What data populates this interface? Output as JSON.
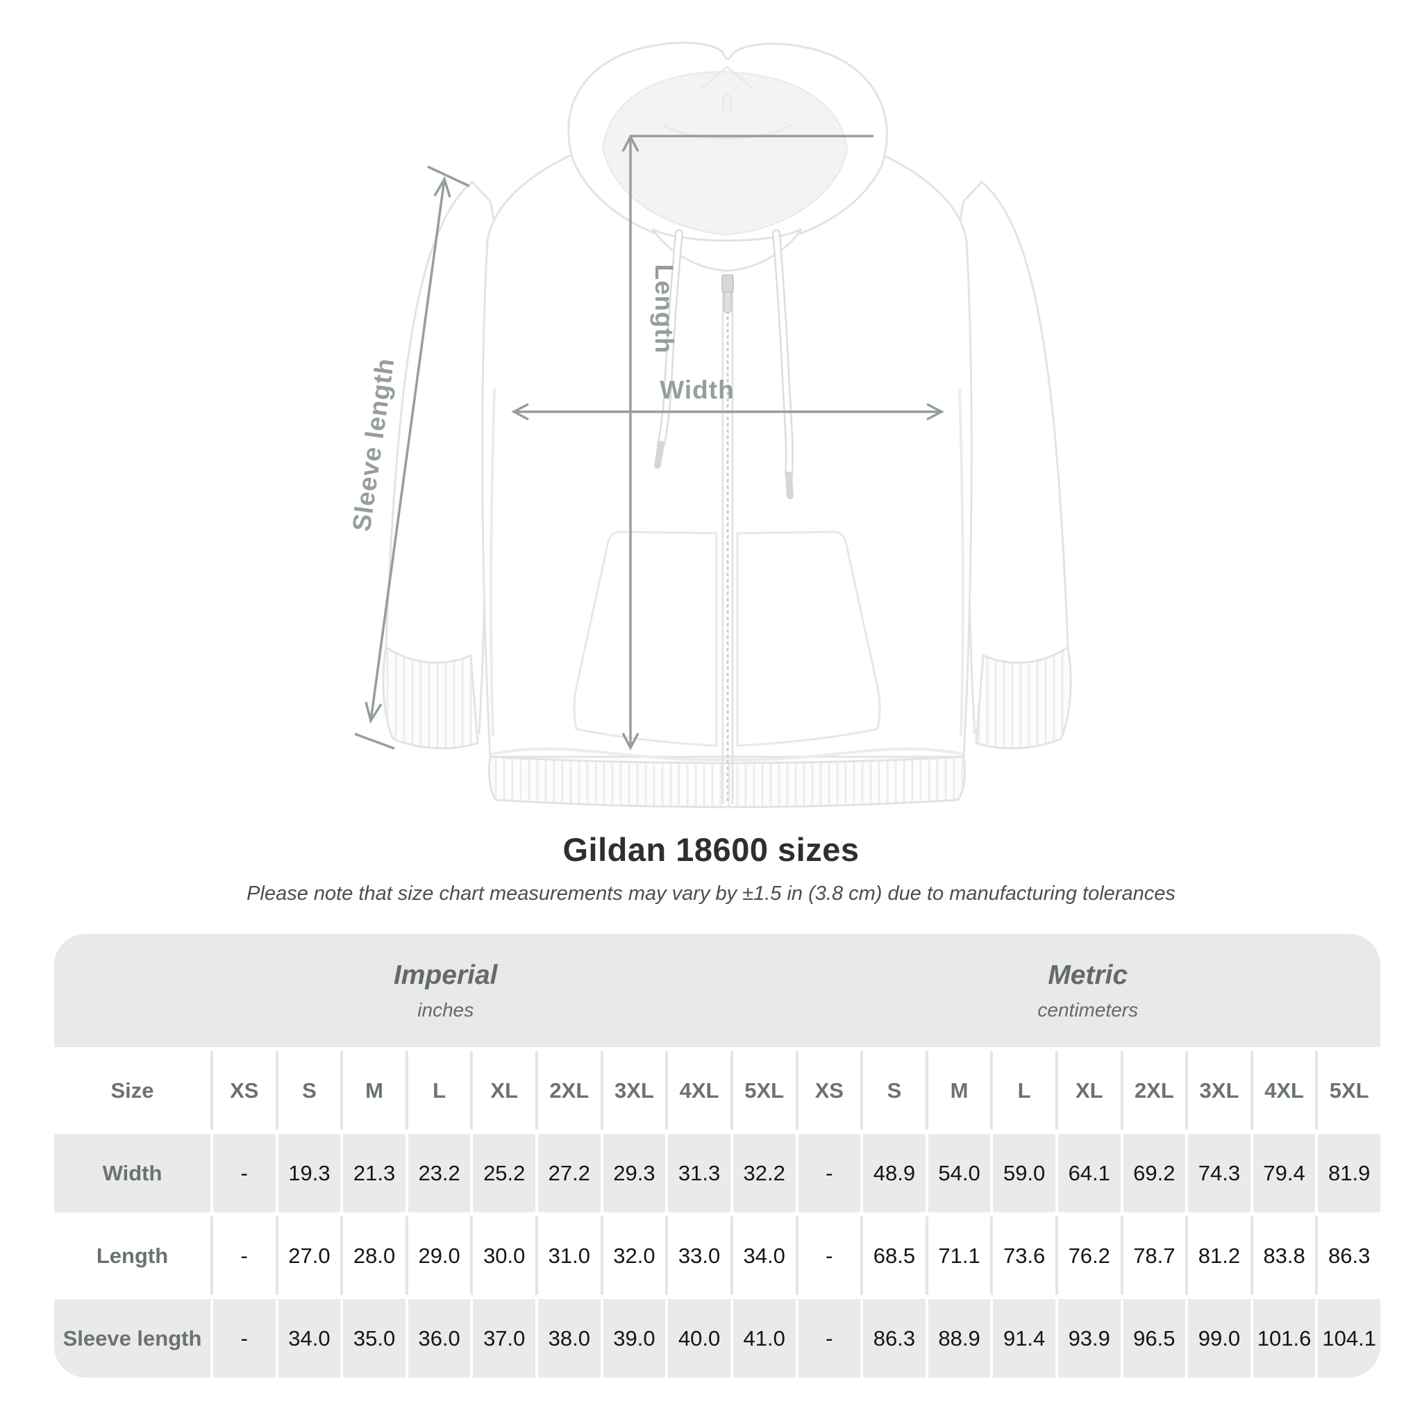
{
  "figure": {
    "annotations": {
      "length": "Length",
      "width": "Width",
      "sleeve_length": "Sleeve length"
    }
  },
  "heading": {
    "title": "Gildan 18600 sizes",
    "subtitle": "Please note that size chart measurements may vary by ±1.5 in (3.8 cm) due to manufacturing tolerances"
  },
  "size_table": {
    "size_col_header": "Size",
    "unit_groups": [
      {
        "name": "Imperial",
        "unit": "inches"
      },
      {
        "name": "Metric",
        "unit": "centimeters"
      }
    ],
    "sizes": [
      "XS",
      "S",
      "M",
      "L",
      "XL",
      "2XL",
      "3XL",
      "4XL",
      "5XL"
    ],
    "rows": [
      {
        "label": "Width",
        "imperial": [
          "-",
          "19.3",
          "21.3",
          "23.2",
          "25.2",
          "27.2",
          "29.3",
          "31.3",
          "32.2"
        ],
        "metric": [
          "-",
          "48.9",
          "54.0",
          "59.0",
          "64.1",
          "69.2",
          "74.3",
          "79.4",
          "81.9"
        ]
      },
      {
        "label": "Length",
        "imperial": [
          "-",
          "27.0",
          "28.0",
          "29.0",
          "30.0",
          "31.0",
          "32.0",
          "33.0",
          "34.0"
        ],
        "metric": [
          "-",
          "68.5",
          "71.1",
          "73.6",
          "76.2",
          "78.7",
          "81.2",
          "83.8",
          "86.3"
        ]
      },
      {
        "label": "Sleeve length",
        "imperial": [
          "-",
          "34.0",
          "35.0",
          "36.0",
          "37.0",
          "38.0",
          "39.0",
          "40.0",
          "41.0"
        ],
        "metric": [
          "-",
          "86.3",
          "88.9",
          "91.4",
          "93.9",
          "96.5",
          "99.0",
          "101.6",
          "104.1"
        ]
      }
    ]
  },
  "colors": {
    "band_bg": "#e9e9e9",
    "row_gray": "#eaeaea",
    "separator_on_white": "#e4e4e4",
    "separator_on_gray": "#ffffff",
    "header_text": "#636a6a",
    "label_text": "#6b7272",
    "value_text": "#151515",
    "title_text": "#2f2f2f",
    "subtitle_text": "#4d4d4d",
    "measure_gray": "#969d9d",
    "garment_outline": "#e3e3e3"
  }
}
